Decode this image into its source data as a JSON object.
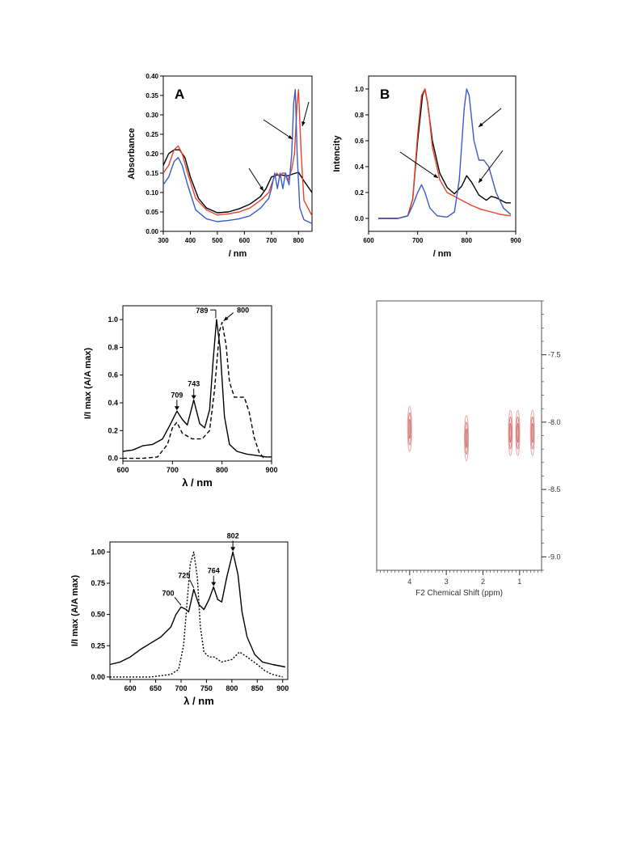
{
  "chart_data": [
    {
      "id": "A",
      "type": "line",
      "panel_label": "A",
      "xlabel": "/ nm",
      "ylabel": "Absorbance",
      "xlim": [
        300,
        850
      ],
      "ylim": [
        0.0,
        0.4
      ],
      "xticks": [
        300,
        400,
        500,
        600,
        700,
        800
      ],
      "yticks": [
        0.0,
        0.05,
        0.1,
        0.15,
        0.2,
        0.25,
        0.3,
        0.35,
        0.4
      ],
      "yticklabels": [
        "0.00",
        "0.05",
        "0.10",
        "0.15",
        "0.20",
        "0.25",
        "0.30",
        "0.35",
        "0.40"
      ],
      "xticklabels": [
        "300",
        "400",
        "500",
        "600",
        "700",
        "800"
      ],
      "series": [
        {
          "color": "#000000",
          "style": "solid",
          "x": [
            300,
            320,
            340,
            360,
            380,
            400,
            430,
            460,
            500,
            540,
            580,
            620,
            660,
            680,
            700,
            720,
            740,
            760,
            780,
            800,
            820,
            850
          ],
          "y": [
            0.17,
            0.2,
            0.21,
            0.21,
            0.19,
            0.14,
            0.085,
            0.06,
            0.048,
            0.05,
            0.058,
            0.07,
            0.09,
            0.11,
            0.14,
            0.145,
            0.145,
            0.143,
            0.148,
            0.152,
            0.13,
            0.1
          ]
        },
        {
          "color": "#e8432a",
          "style": "solid",
          "x": [
            300,
            320,
            340,
            355,
            370,
            390,
            420,
            460,
            500,
            540,
            580,
            620,
            660,
            690,
            710,
            720,
            730,
            740,
            750,
            760,
            775,
            785,
            795,
            800,
            810,
            820,
            850
          ],
          "y": [
            0.15,
            0.17,
            0.21,
            0.22,
            0.2,
            0.15,
            0.085,
            0.055,
            0.042,
            0.045,
            0.05,
            0.06,
            0.08,
            0.1,
            0.14,
            0.15,
            0.14,
            0.15,
            0.15,
            0.13,
            0.16,
            0.2,
            0.33,
            0.365,
            0.2,
            0.08,
            0.04
          ]
        },
        {
          "color": "#3a5bc7",
          "style": "solid",
          "x": [
            300,
            320,
            340,
            355,
            370,
            390,
            420,
            460,
            500,
            540,
            580,
            620,
            660,
            690,
            700,
            712,
            722,
            732,
            742,
            752,
            765,
            775,
            782,
            788,
            795,
            805,
            820,
            850
          ],
          "y": [
            0.12,
            0.14,
            0.18,
            0.19,
            0.17,
            0.12,
            0.055,
            0.032,
            0.025,
            0.028,
            0.032,
            0.04,
            0.06,
            0.085,
            0.11,
            0.15,
            0.11,
            0.15,
            0.11,
            0.15,
            0.12,
            0.2,
            0.33,
            0.365,
            0.2,
            0.06,
            0.03,
            0.02
          ]
        }
      ]
    },
    {
      "id": "B",
      "type": "line",
      "panel_label": "B",
      "xlabel": "/ nm",
      "ylabel": "Intencity",
      "xlim": [
        600,
        900
      ],
      "ylim": [
        -0.1,
        1.1
      ],
      "xticks": [
        600,
        700,
        800,
        900
      ],
      "yticks": [
        0.0,
        0.2,
        0.4,
        0.6,
        0.8,
        1.0
      ],
      "yticklabels": [
        "0.0",
        "0.2",
        "0.4",
        "0.6",
        "0.8",
        "1.0"
      ],
      "xticklabels": [
        "600",
        "700",
        "800",
        "900"
      ],
      "series": [
        {
          "color": "#000000",
          "style": "solid",
          "x": [
            620,
            660,
            680,
            690,
            700,
            710,
            715,
            720,
            730,
            745,
            760,
            775,
            790,
            800,
            810,
            825,
            840,
            850,
            860,
            880,
            890
          ],
          "y": [
            0.0,
            0.0,
            0.02,
            0.15,
            0.6,
            0.95,
            1.0,
            0.9,
            0.6,
            0.35,
            0.24,
            0.19,
            0.25,
            0.33,
            0.28,
            0.18,
            0.14,
            0.17,
            0.16,
            0.12,
            0.12
          ]
        },
        {
          "color": "#e8432a",
          "style": "solid",
          "x": [
            620,
            660,
            680,
            690,
            700,
            708,
            715,
            722,
            730,
            745,
            760,
            780,
            795,
            810,
            830,
            850,
            870,
            890
          ],
          "y": [
            0.0,
            0.0,
            0.02,
            0.15,
            0.65,
            0.95,
            1.0,
            0.85,
            0.55,
            0.3,
            0.2,
            0.16,
            0.13,
            0.1,
            0.07,
            0.05,
            0.03,
            0.02
          ]
        },
        {
          "color": "#3a5bc7",
          "style": "solid",
          "x": [
            620,
            660,
            680,
            690,
            700,
            708,
            715,
            725,
            740,
            760,
            775,
            785,
            795,
            800,
            805,
            815,
            825,
            835,
            845,
            860,
            875,
            890
          ],
          "y": [
            0.0,
            0.0,
            0.02,
            0.1,
            0.2,
            0.26,
            0.2,
            0.08,
            0.02,
            0.01,
            0.05,
            0.3,
            0.85,
            1.0,
            0.95,
            0.6,
            0.45,
            0.45,
            0.4,
            0.2,
            0.08,
            0.03
          ]
        }
      ]
    },
    {
      "id": "C",
      "type": "line",
      "xlabel": "λ / nm",
      "ylabel": "I/I max (A/A max)",
      "xlim": [
        600,
        900
      ],
      "ylim": [
        -0.02,
        1.1
      ],
      "xticks": [
        600,
        700,
        800,
        900
      ],
      "yticks": [
        0.0,
        0.2,
        0.4,
        0.6,
        0.8,
        1.0
      ],
      "yticklabels": [
        "0.0",
        "0.2",
        "0.4",
        "0.6",
        "0.8",
        "1.0"
      ],
      "xticklabels": [
        "600",
        "700",
        "800",
        "900"
      ],
      "annotations": [
        {
          "text": "789",
          "x": 789,
          "y": 1.0
        },
        {
          "text": "800",
          "x": 800,
          "y": 0.98
        },
        {
          "text": "709",
          "x": 709,
          "y": 0.34
        },
        {
          "text": "743",
          "x": 743,
          "y": 0.42
        }
      ],
      "series": [
        {
          "color": "#000000",
          "style": "solid",
          "x": [
            600,
            620,
            640,
            660,
            680,
            695,
            709,
            720,
            730,
            743,
            755,
            765,
            775,
            782,
            789,
            796,
            805,
            815,
            830,
            850,
            870,
            890,
            900
          ],
          "y": [
            0.05,
            0.06,
            0.09,
            0.1,
            0.14,
            0.24,
            0.34,
            0.28,
            0.24,
            0.42,
            0.25,
            0.22,
            0.35,
            0.7,
            1.0,
            0.8,
            0.3,
            0.1,
            0.05,
            0.03,
            0.02,
            0.01,
            0.01
          ]
        },
        {
          "color": "#000000",
          "style": "dashed",
          "x": [
            600,
            640,
            670,
            690,
            700,
            709,
            720,
            740,
            760,
            775,
            785,
            795,
            800,
            808,
            815,
            825,
            835,
            845,
            855,
            865,
            875,
            885
          ],
          "y": [
            0.0,
            0.0,
            0.01,
            0.1,
            0.22,
            0.26,
            0.18,
            0.14,
            0.14,
            0.2,
            0.5,
            0.92,
            0.98,
            0.82,
            0.55,
            0.44,
            0.44,
            0.44,
            0.33,
            0.15,
            0.04,
            0.0
          ]
        }
      ]
    },
    {
      "id": "D",
      "type": "heatmap",
      "xlabel": "F2 Chemical Shift (ppm)",
      "xticks": [
        4,
        3,
        2,
        1
      ],
      "xticklabels": [
        "4",
        "3",
        "2",
        "1"
      ],
      "xlim": [
        4.9,
        0.4
      ],
      "yticks": [
        -9.0,
        -8.5,
        -8.0,
        -7.5
      ],
      "yticklabels": [
        "-9.0",
        "-8.5",
        "-8.0",
        "-7.5"
      ],
      "ylim": [
        -9.1,
        -7.1
      ],
      "peaks": [
        {
          "x": 4.0,
          "y": -8.05
        },
        {
          "x": 2.45,
          "y": -8.12
        },
        {
          "x": 1.25,
          "y": -8.08
        },
        {
          "x": 1.05,
          "y": -8.08
        },
        {
          "x": 0.65,
          "y": -8.08
        }
      ]
    },
    {
      "id": "E",
      "type": "line",
      "xlabel": "λ / nm",
      "ylabel": "I/I max (A/A max)",
      "xlim": [
        560,
        910
      ],
      "ylim": [
        -0.02,
        1.08
      ],
      "xticks": [
        600,
        650,
        700,
        750,
        800,
        850,
        900
      ],
      "yticks": [
        0.0,
        0.25,
        0.5,
        0.75,
        1.0
      ],
      "yticklabels": [
        "0.00",
        "0.25",
        "0.50",
        "0.75",
        "1.00"
      ],
      "xticklabels": [
        "600",
        "650",
        "700",
        "750",
        "800",
        "850",
        "900"
      ],
      "annotations": [
        {
          "text": "802",
          "x": 802,
          "y": 1.0
        },
        {
          "text": "764",
          "x": 764,
          "y": 0.72
        },
        {
          "text": "725",
          "x": 725,
          "y": 0.7
        },
        {
          "text": "700",
          "x": 700,
          "y": 0.56
        }
      ],
      "series": [
        {
          "color": "#000000",
          "style": "solid",
          "x": [
            560,
            580,
            600,
            620,
            640,
            660,
            680,
            690,
            700,
            710,
            715,
            725,
            735,
            745,
            755,
            764,
            772,
            780,
            790,
            802,
            812,
            820,
            830,
            845,
            860,
            880,
            905
          ],
          "y": [
            0.1,
            0.12,
            0.16,
            0.22,
            0.27,
            0.32,
            0.4,
            0.5,
            0.56,
            0.54,
            0.52,
            0.7,
            0.58,
            0.54,
            0.62,
            0.72,
            0.62,
            0.6,
            0.8,
            1.0,
            0.82,
            0.52,
            0.32,
            0.18,
            0.12,
            0.1,
            0.08
          ]
        },
        {
          "color": "#000000",
          "style": "dotted",
          "x": [
            560,
            640,
            680,
            695,
            705,
            712,
            718,
            725,
            732,
            738,
            745,
            755,
            765,
            780,
            800,
            815,
            830,
            850,
            865,
            880,
            900
          ],
          "y": [
            0.0,
            0.0,
            0.02,
            0.06,
            0.25,
            0.6,
            0.9,
            1.0,
            0.8,
            0.4,
            0.2,
            0.16,
            0.16,
            0.12,
            0.14,
            0.2,
            0.16,
            0.1,
            0.05,
            0.02,
            0.0
          ]
        }
      ]
    }
  ]
}
